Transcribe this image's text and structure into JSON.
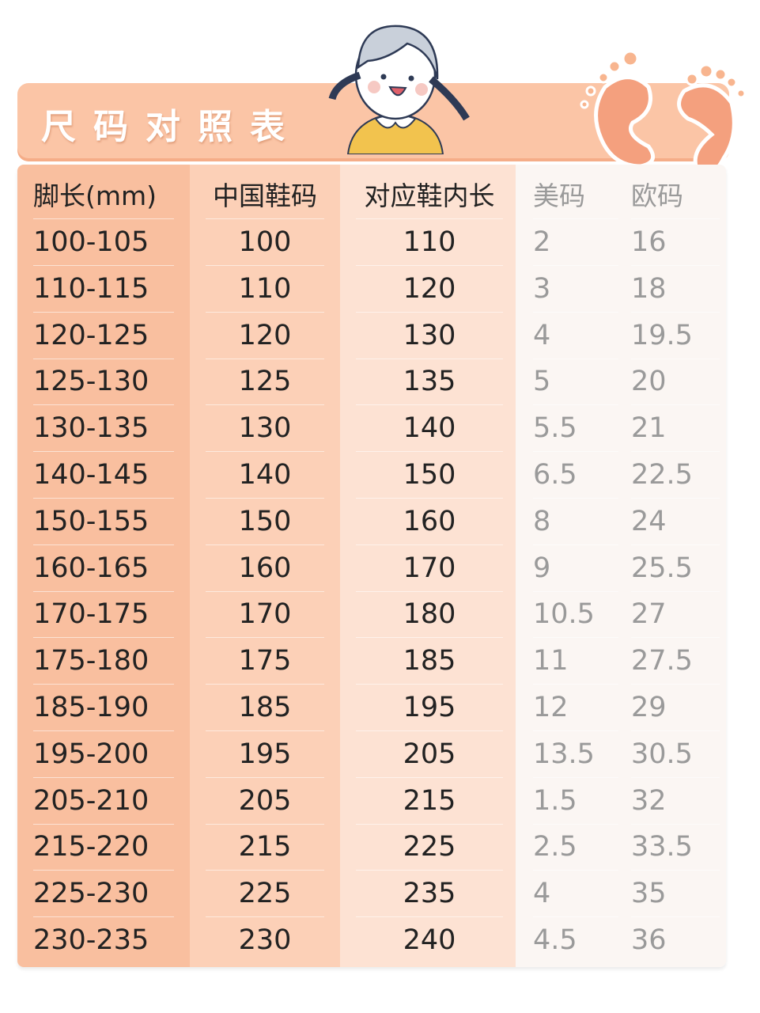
{
  "title": "尺码对照表",
  "columns": [
    "脚长(mm)",
    "中国鞋码",
    "对应鞋内长",
    "美码",
    "欧码"
  ],
  "rows": [
    [
      "100-105",
      "100",
      "110",
      "2",
      "16"
    ],
    [
      "110-115",
      "110",
      "120",
      "3",
      "18"
    ],
    [
      "120-125",
      "120",
      "130",
      "4",
      "19.5"
    ],
    [
      "125-130",
      "125",
      "135",
      "5",
      "20"
    ],
    [
      "130-135",
      "130",
      "140",
      "5.5",
      "21"
    ],
    [
      "140-145",
      "140",
      "150",
      "6.5",
      "22.5"
    ],
    [
      "150-155",
      "150",
      "160",
      "8",
      "24"
    ],
    [
      "160-165",
      "160",
      "170",
      "9",
      "25.5"
    ],
    [
      "170-175",
      "170",
      "180",
      "10.5",
      "27"
    ],
    [
      "175-180",
      "175",
      "185",
      "11",
      "27.5"
    ],
    [
      "185-190",
      "185",
      "195",
      "12",
      "29"
    ],
    [
      "195-200",
      "195",
      "205",
      "13.5",
      "30.5"
    ],
    [
      "205-210",
      "205",
      "215",
      "1.5",
      "32"
    ],
    [
      "215-220",
      "215",
      "225",
      "2.5",
      "33.5"
    ],
    [
      "225-230",
      "225",
      "235",
      "4",
      "35"
    ],
    [
      "230-235",
      "230",
      "240",
      "4.5",
      "36"
    ]
  ],
  "colors": {
    "banner": "#fbc5a6",
    "col1": "#f9bf9f",
    "col2": "#fcd0b7",
    "col3": "#fde2d3",
    "col45": "#fbf6f3",
    "muted_text": "#9a9a9a"
  },
  "icons": [
    "girl-illustration",
    "footprints-illustration"
  ]
}
